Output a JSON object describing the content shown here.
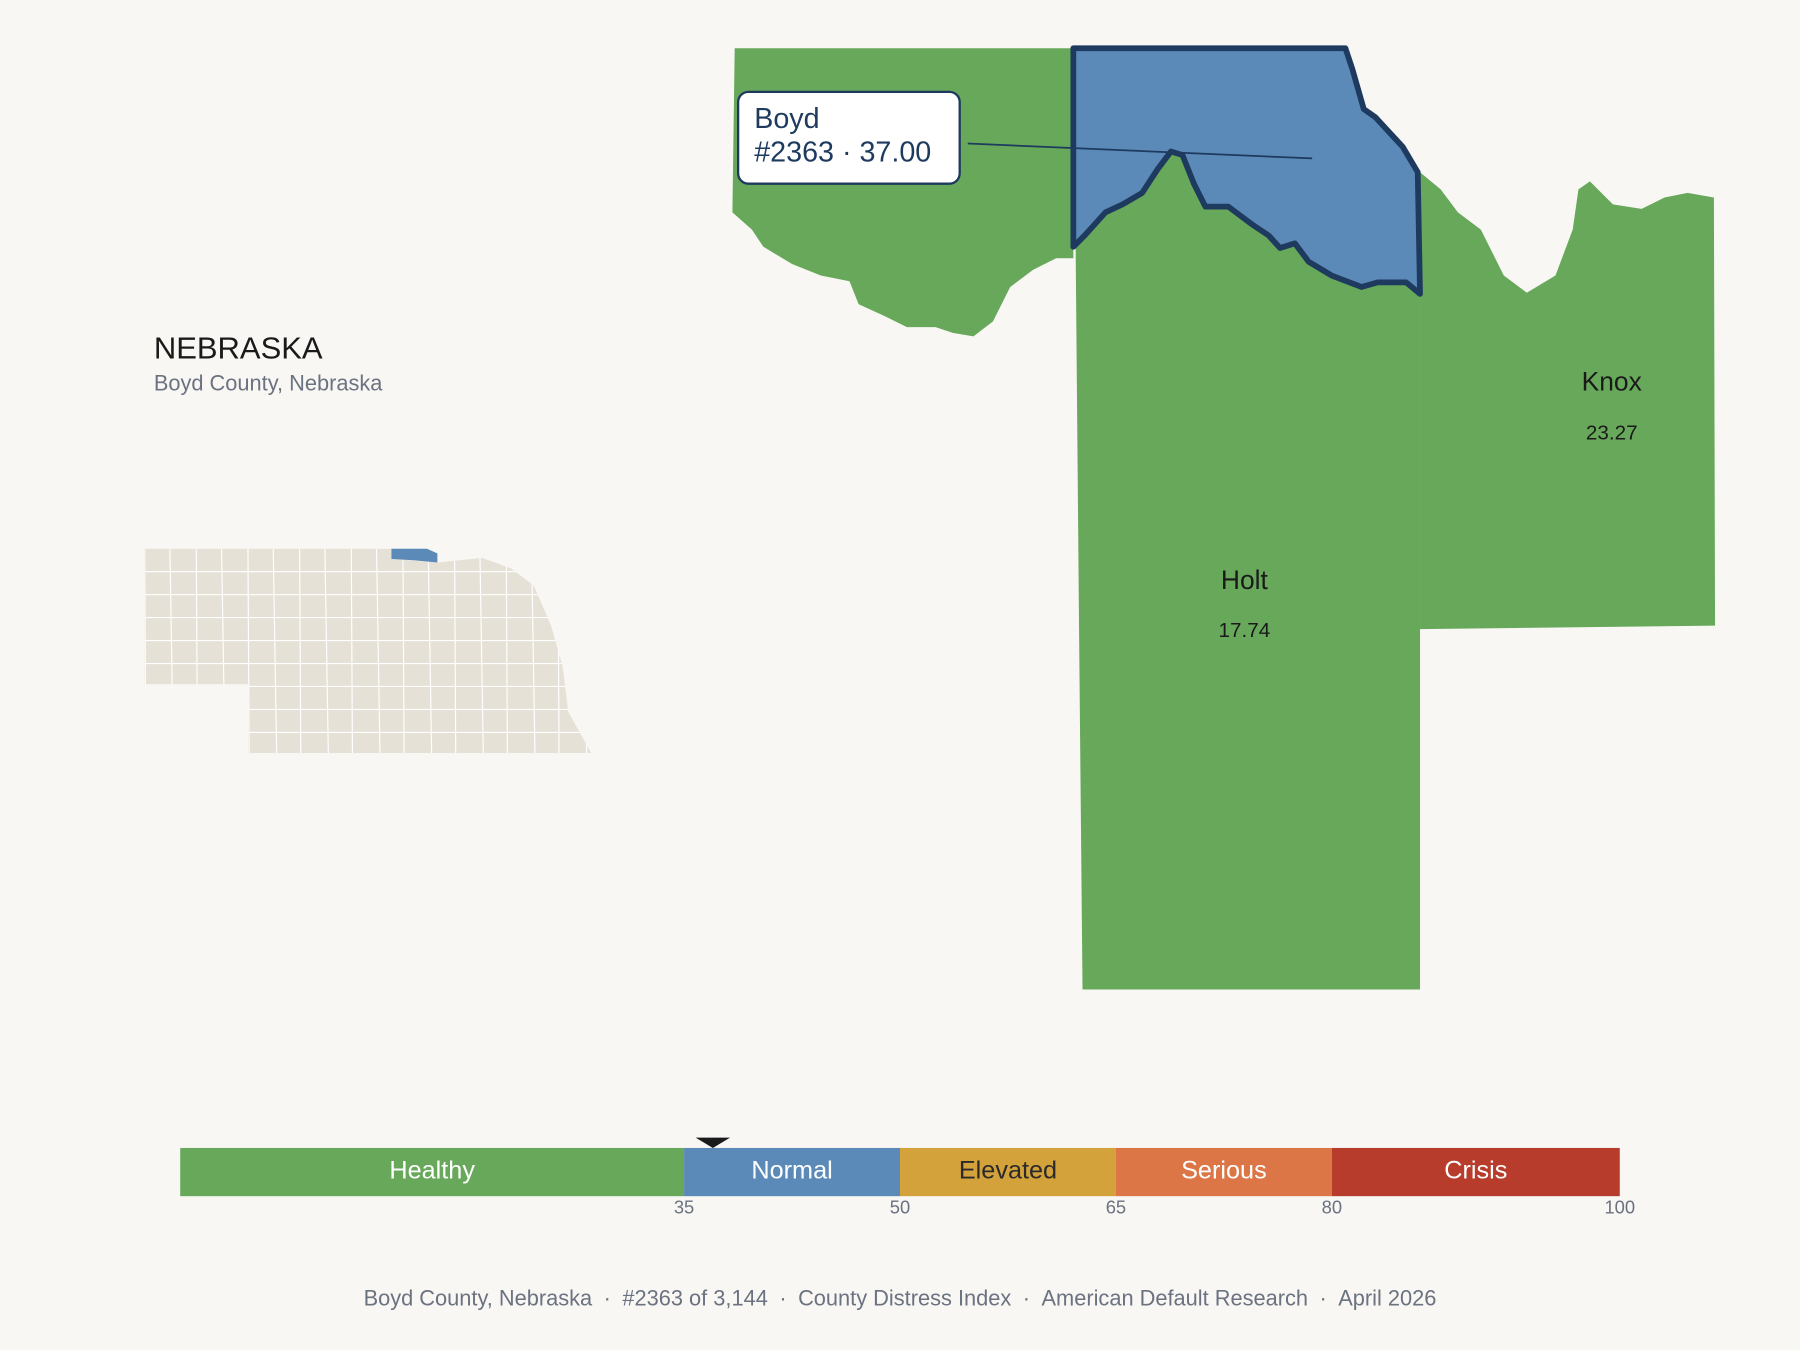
{
  "map": {
    "title": "NEBRASKA",
    "subtitle": "Boyd County, Nebraska",
    "counties": [
      {
        "name": "Boyd",
        "color": "#5b8ab8",
        "highlight": true,
        "callout": [
          "Boyd",
          "#2363 · 37.00"
        ]
      },
      {
        "name": "Holt",
        "color": "#67a85a",
        "value": "17.74"
      },
      {
        "name": "Knox",
        "color": "#67a85a",
        "value": "23.27"
      }
    ]
  },
  "legend": {
    "range": [
      0,
      100
    ],
    "marker": 37,
    "bands": [
      {
        "label": "Healthy",
        "color": "#67a85a",
        "text_color": "#ffffff"
      },
      {
        "label": "Normal",
        "color": "#5b8ab8",
        "text_color": "#ffffff"
      },
      {
        "label": "Elevated",
        "color": "#d4a23a",
        "text_color": "#2a2a2a"
      },
      {
        "label": "Serious",
        "color": "#dc7646",
        "text_color": "#ffffff"
      },
      {
        "label": "Crisis",
        "color": "#b83c2c",
        "text_color": "#ffffff"
      }
    ],
    "ticks": [
      35,
      50,
      65,
      80,
      100
    ]
  },
  "footer": {
    "separator": "·",
    "items": [
      "Boyd County, Nebraska",
      "#2363 of 3,144",
      "County Distress Index",
      "American Default Research",
      "April 2026"
    ]
  }
}
